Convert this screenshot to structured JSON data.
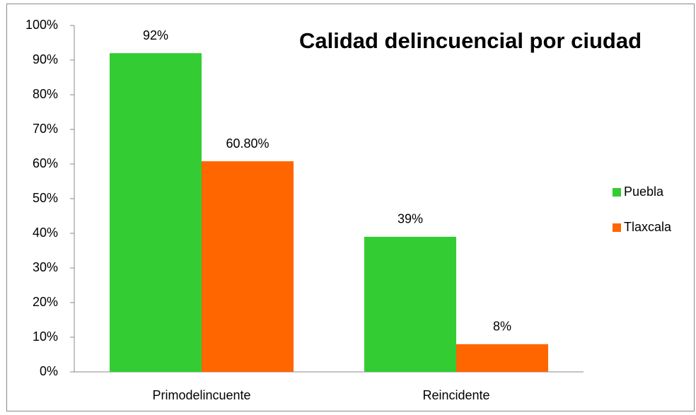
{
  "chart_data": {
    "type": "bar",
    "title": "Calidad delincuencial por ciudad",
    "categories": [
      "Primodelincuente",
      "Reincidente"
    ],
    "series": [
      {
        "name": "Puebla",
        "color": "#33cc33",
        "values": [
          92,
          39
        ],
        "value_labels": [
          "92%",
          "39%"
        ]
      },
      {
        "name": "Tlaxcala",
        "color": "#ff6600",
        "values": [
          60.8,
          8
        ],
        "value_labels": [
          "60.80%",
          "8%"
        ]
      }
    ],
    "ylim": [
      0,
      100
    ],
    "yticks": [
      {
        "value": 0,
        "label": "0%"
      },
      {
        "value": 10,
        "label": "10%"
      },
      {
        "value": 20,
        "label": "20%"
      },
      {
        "value": 30,
        "label": "30%"
      },
      {
        "value": 40,
        "label": "40%"
      },
      {
        "value": 50,
        "label": "50%"
      },
      {
        "value": 60,
        "label": "60%"
      },
      {
        "value": 70,
        "label": "70%"
      },
      {
        "value": 80,
        "label": "80%"
      },
      {
        "value": 90,
        "label": "90%"
      },
      {
        "value": 100,
        "label": "100%"
      }
    ],
    "grid": false,
    "legend": "right"
  }
}
